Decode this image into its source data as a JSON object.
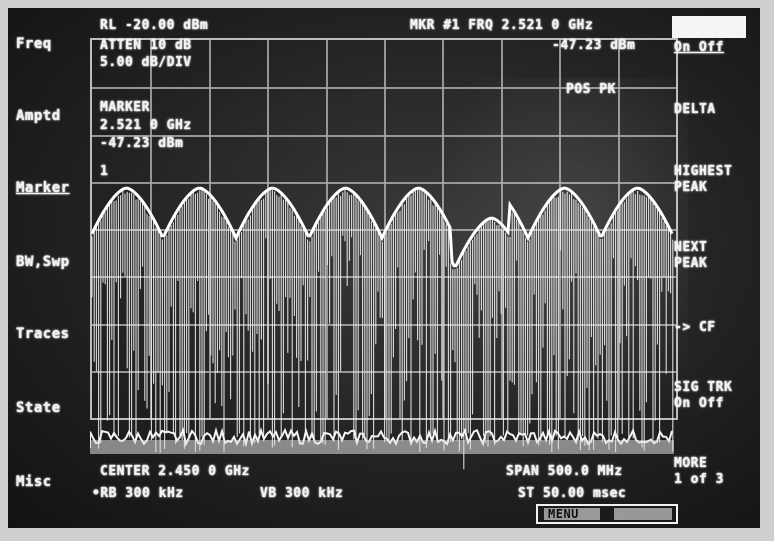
{
  "header": {
    "ref_level": "RL -20.00 dBm",
    "marker_freq": "MKR #1 FRQ 2.521 0 GHz",
    "marker_amplitude": "-47.23 dBm",
    "detector": "POS PK"
  },
  "settings": {
    "atten": "ATTEN 10 dB",
    "scale": "5.00 dB/DIV"
  },
  "marker_readout": {
    "title": "MARKER",
    "freq": "2.521 0 GHz",
    "amplitude": "-47.23 dBm",
    "marker_number": "1"
  },
  "left_menu": [
    "Freq",
    "Amptd",
    "Marker",
    "BW,Swp",
    "Traces",
    "State",
    "Misc"
  ],
  "right_menu": {
    "on_off": "On Off",
    "delta": "DELTA",
    "highest_peak": [
      "HIGHEST",
      "PEAK"
    ],
    "next_peak": [
      "NEXT",
      "PEAK"
    ],
    "to_cf": "-> CF",
    "sig_trk": [
      "SIG TRK",
      "On Off"
    ],
    "more": [
      "MORE",
      "1 of 3"
    ]
  },
  "footer": {
    "center": "CENTER 2.450 0 GHz",
    "span": "SPAN 500.0 MHz",
    "rbw": "•RB 300 kHz",
    "vbw": "VB 300 kHz",
    "sweep": "ST 50.00 msec",
    "menu": "MENU"
  },
  "colors": {
    "phosphor": "#f2f2f2",
    "graticule": "#a9a9a9",
    "screen": "#222222"
  }
}
